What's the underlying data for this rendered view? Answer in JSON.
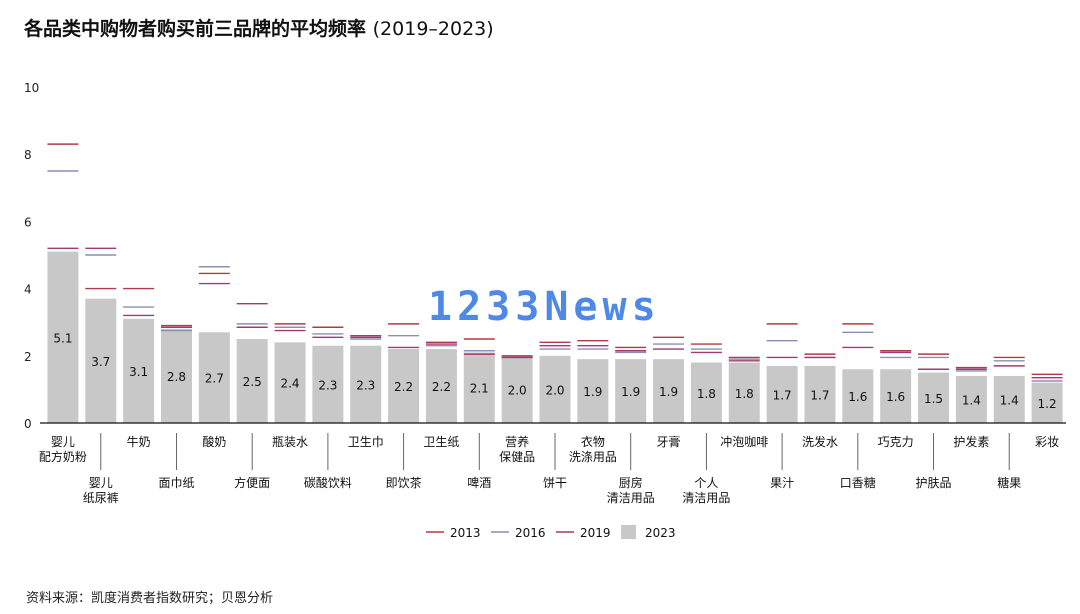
{
  "chart_data": {
    "type": "bar",
    "title": "各品类中购物者购买前三品牌的平均频率",
    "title_years": "(2019–2023)",
    "ylim": [
      0,
      10
    ],
    "yticks": [
      "0",
      "2",
      "4",
      "6",
      "8",
      "10"
    ],
    "grid": false,
    "legend_position": "bottom",
    "categories": [
      [
        "婴儿",
        "配方奶粉"
      ],
      [
        "婴儿",
        "纸尿裤"
      ],
      [
        "牛奶"
      ],
      [
        "面巾纸"
      ],
      [
        "酸奶"
      ],
      [
        "方便面"
      ],
      [
        "瓶装水"
      ],
      [
        "碳酸饮料"
      ],
      [
        "卫生巾"
      ],
      [
        "即饮茶"
      ],
      [
        "卫生纸"
      ],
      [
        "啤酒"
      ],
      [
        "营养",
        "保健品"
      ],
      [
        "饼干"
      ],
      [
        "衣物",
        "洗涤用品"
      ],
      [
        "厨房",
        "清洁用品"
      ],
      [
        "牙膏"
      ],
      [
        "个人",
        "清洁用品"
      ],
      [
        "冲泡咖啡"
      ],
      [
        "果汁"
      ],
      [
        "洗发水"
      ],
      [
        "口香糖"
      ],
      [
        "巧克力"
      ],
      [
        "护肤品"
      ],
      [
        "护发素"
      ],
      [
        "糖果"
      ],
      [
        "彩妆"
      ]
    ],
    "series": [
      {
        "name": "2013",
        "type": "marker",
        "color": "#b03a48",
        "values": [
          8.3,
          4.0,
          4.0,
          2.85,
          4.45,
          3.55,
          2.95,
          2.85,
          2.6,
          2.95,
          2.4,
          2.5,
          2.0,
          2.4,
          2.45,
          2.25,
          2.55,
          2.35,
          1.95,
          2.95,
          2.05,
          2.95,
          2.15,
          2.05,
          1.65,
          1.95,
          1.45
        ]
      },
      {
        "name": "2016",
        "type": "marker",
        "color": "#8a8fb5",
        "values": [
          7.5,
          5.0,
          3.45,
          2.75,
          4.65,
          2.95,
          2.85,
          2.65,
          2.5,
          2.6,
          2.3,
          2.15,
          1.95,
          2.2,
          2.2,
          2.1,
          2.35,
          2.2,
          1.9,
          2.45,
          1.95,
          2.7,
          1.95,
          1.95,
          1.55,
          1.85,
          1.25
        ]
      },
      {
        "name": "2019",
        "type": "marker",
        "color": "#a23a70",
        "values": [
          5.2,
          5.2,
          3.2,
          2.9,
          4.15,
          2.85,
          2.75,
          2.55,
          2.55,
          2.25,
          2.35,
          2.05,
          1.95,
          2.3,
          2.3,
          2.15,
          2.2,
          2.1,
          1.85,
          1.95,
          1.95,
          2.25,
          2.1,
          1.6,
          1.6,
          1.7,
          1.35
        ]
      },
      {
        "name": "2023",
        "type": "bar",
        "color": "#c8c8c8",
        "values": [
          5.1,
          3.7,
          3.1,
          2.8,
          2.7,
          2.5,
          2.4,
          2.3,
          2.3,
          2.2,
          2.2,
          2.1,
          2.0,
          2.0,
          1.9,
          1.9,
          1.9,
          1.8,
          1.8,
          1.7,
          1.7,
          1.6,
          1.6,
          1.5,
          1.4,
          1.4,
          1.2
        ]
      }
    ]
  },
  "source_note": "资料来源：凯度消费者指数研究；贝恩分析",
  "watermark": "1233News"
}
